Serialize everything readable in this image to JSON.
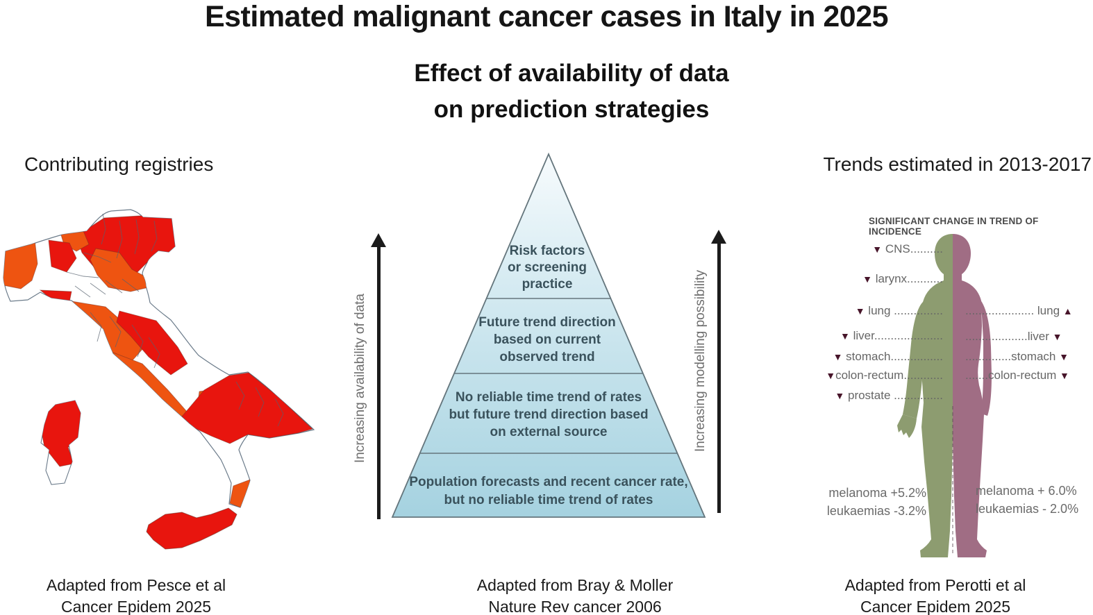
{
  "title": "Estimated malignant cancer cases in Italy in 2025",
  "subtitle": "Effect of availability of data\non prediction strategies",
  "left_panel": {
    "heading": "Contributing registries",
    "caption": "Adapted from Pesce et al\nCancer Epidem 2025",
    "colors": {
      "registry_red": "#e8150e",
      "registry_orange": "#ee5411",
      "no_registry_white": "#ffffff"
    }
  },
  "middle_panel": {
    "left_axis_label": "Increasing availability of data",
    "right_axis_label": "Increasing modelling possibility",
    "tiers": [
      "Risk factors\nor screening\npractice",
      "Future trend direction\nbased on current\nobserved trend",
      "No reliable time trend of rates\nbut future trend direction based\non external source",
      "Population forecasts and recent cancer rate,\nbut no reliable time trend of rates"
    ],
    "colors": {
      "pyramid_top": "#f2f9fc",
      "pyramid_bottom": "#a5d2e0"
    },
    "caption": "Adapted from Bray & Moller\nNature Rev cancer 2006"
  },
  "right_panel": {
    "heading": "Trends estimated in 2013-2017",
    "chart_title": "SIGNIFICANT CHANGE IN TREND OF INCIDENCE",
    "male_trends": [
      {
        "site": "CNS",
        "direction": "down",
        "label": " CNS.........."
      },
      {
        "site": "larynx",
        "direction": "down",
        "label": " larynx..........."
      },
      {
        "site": "lung",
        "direction": "down",
        "label": " lung ..............."
      },
      {
        "site": "liver",
        "direction": "down",
        "label": " liver....................."
      },
      {
        "site": "stomach",
        "direction": "down",
        "label": " stomach................"
      },
      {
        "site": "colon-rectum",
        "direction": "down",
        "label": "colon-rectum............"
      },
      {
        "site": "prostate",
        "direction": "down",
        "label": " prostate ..............."
      }
    ],
    "female_trends": [
      {
        "site": "lung",
        "direction": "up",
        "label": "..................... lung "
      },
      {
        "site": "liver",
        "direction": "down",
        "label": "...................liver "
      },
      {
        "site": "stomach",
        "direction": "down",
        "label": "..............stomach "
      },
      {
        "site": "colon-rectum",
        "direction": "down",
        "label": ".......colon-rectum "
      }
    ],
    "male_stats": "melanoma +5.2%\nleukaemias -3.2%",
    "female_stats": "melanoma + 6.0%\nleukaemias - 2.0%",
    "colors": {
      "male_green": "#8d9c70",
      "female_mauve": "#a06d84",
      "triangle_maroon": "#47152a"
    },
    "caption": "Adapted from Perotti et al\nCancer Epidem 2025"
  }
}
